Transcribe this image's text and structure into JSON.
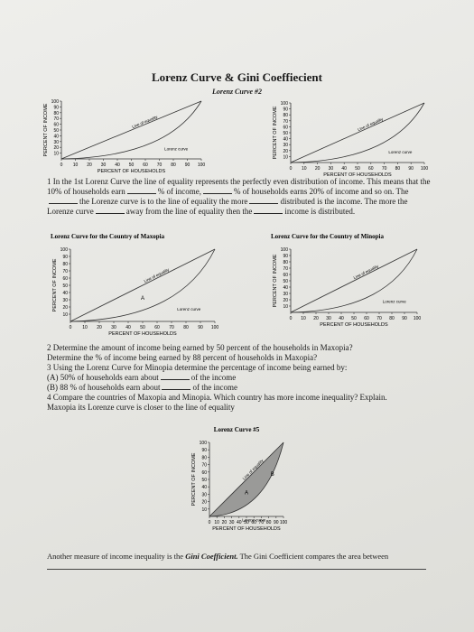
{
  "title": "Lorenz Curve & Gini Coeffiecient",
  "subtitle": "Lorenz Curve #2",
  "charts": [
    {
      "y_label": "PERCENT OF INCOME",
      "x_label": "PERCENT OF HOUSEHOLDS",
      "xticks": [
        0,
        10,
        20,
        30,
        40,
        50,
        60,
        70,
        80,
        90,
        100
      ],
      "yticks": [
        10,
        20,
        30,
        40,
        50,
        60,
        70,
        80,
        90,
        100
      ],
      "equality_label": "Line of equality",
      "curve_label": "Lorenz curve"
    },
    {
      "y_label": "PERCENT OF INCOME",
      "x_label": "PERCENT OF HOUSEHOLDS",
      "xticks": [
        0,
        10,
        20,
        30,
        40,
        50,
        60,
        70,
        80,
        90,
        100
      ],
      "yticks": [
        10,
        20,
        30,
        40,
        50,
        60,
        70,
        80,
        90,
        100
      ],
      "equality_label": "Line of equality",
      "curve_label": "Lorenz curve"
    },
    {
      "title": "Lorenz Curve for the Country of Maxopia",
      "y_label": "PERCENT OF INCOME",
      "x_label": "PERCENT OF HOUSEHOLDS",
      "xticks": [
        0,
        10,
        20,
        30,
        40,
        50,
        60,
        70,
        80,
        90,
        100
      ],
      "yticks": [
        10,
        20,
        30,
        40,
        50,
        60,
        70,
        80,
        90,
        100
      ],
      "equality_label": "Line of equality",
      "curve_label": "Lorenz curve",
      "point_labels": [
        "A"
      ]
    },
    {
      "title": "Lorenz Curve for the Country of Minopia",
      "y_label": "PERCENT OF INCOME",
      "x_label": "PERCENT OF HOUSEHOLDS",
      "xticks": [
        0,
        10,
        20,
        30,
        40,
        50,
        60,
        70,
        80,
        90,
        100
      ],
      "yticks": [
        10,
        20,
        30,
        40,
        50,
        60,
        70,
        80,
        90,
        100
      ],
      "equality_label": "Line of equality",
      "curve_label": "Lorenz curve"
    },
    {
      "title": "Lorenz Curve #5",
      "y_label": "PERCENT OF INCOME",
      "x_label": "PERCENT OF HOUSEHOLDS",
      "xticks": [
        0,
        10,
        20,
        30,
        40,
        50,
        60,
        70,
        80,
        90,
        100
      ],
      "yticks": [
        10,
        20,
        30,
        40,
        50,
        60,
        70,
        80,
        90,
        100
      ],
      "equality_label": "Line of equality",
      "curve_label": "Lorenz curve",
      "point_labels": [
        "A",
        "B"
      ]
    }
  ],
  "paragraph_1": [
    "1 In the 1st Lorenz Curve the line of equality represents the perfectly even distribution of income. This means that the 10% of households earn",
    "% of income,",
    "% of households earns 20% of income and so on. The",
    "the Lorenze curve is to the line of equality the more",
    "distributed is the income. The more the Lorenze curve",
    "away from the line of equality then the",
    "income is distributed."
  ],
  "questions": [
    [
      "2 Determine the amount of income being earned by 50 percent of the households in Maxopia?"
    ],
    [
      "Determine the % of income being earned by 88 percent of households in Maxopia?"
    ],
    [
      "3 Using the Lorenz Curve for Minopia determine the percentage of income being earned by:"
    ],
    [
      "(A) 50% of households earn about",
      "of the income"
    ],
    [
      "(B) 88 % of households earn about",
      "of the income"
    ],
    [
      "4 Compare the countries of Maxopia and Minopia. Which country has more income inequality? Explain."
    ],
    [
      "Maxopia its Lorenze curve is closer to the line of equality"
    ]
  ],
  "footer": {
    "before": "Another measure of income inequality is the ",
    "term": "Gini Coefficient.",
    "after": " The Gini Coefficient compares the area between"
  }
}
